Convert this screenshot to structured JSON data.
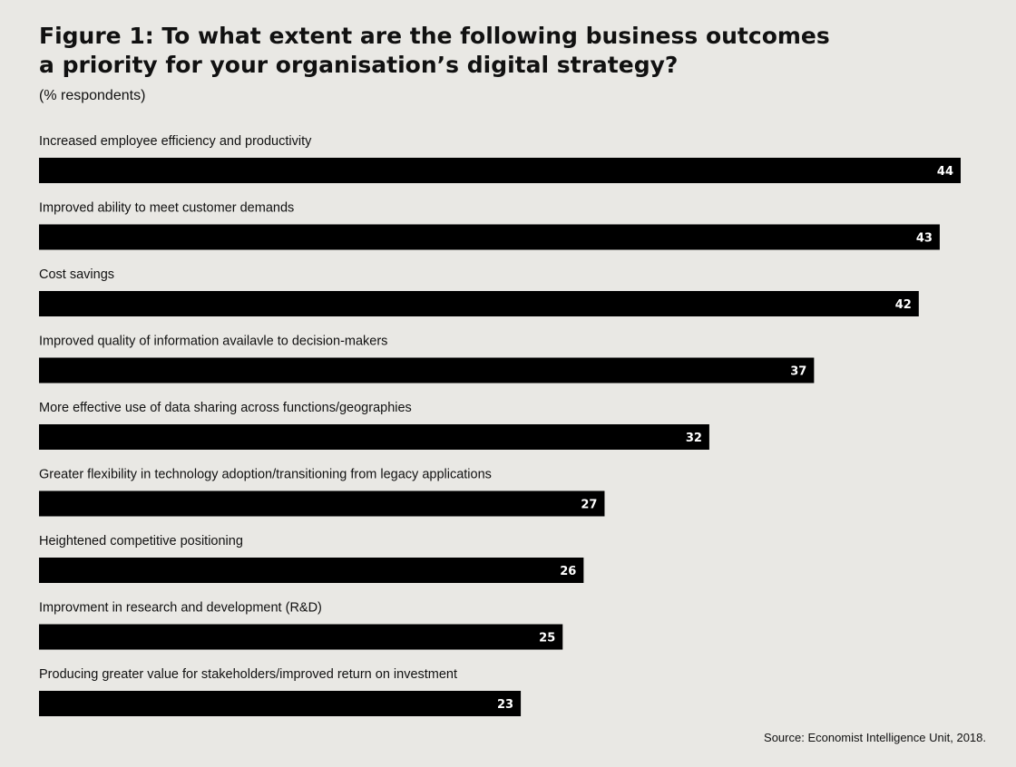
{
  "chart_data": {
    "type": "bar",
    "orientation": "horizontal",
    "title_line1": "Figure 1: To what extent are the following business outcomes",
    "title_line2": "a priority for your organisation’s digital strategy?",
    "subtitle": "(% respondents)",
    "source": "Source: Economist Intelligence Unit, 2018.",
    "categories": [
      "Increased employee efficiency and productivity",
      "Improved ability to meet customer demands",
      "Cost savings",
      "Improved quality of information availavle to decision-makers",
      "More effective use of data sharing across functions/geographies",
      "Greater flexibility in technology adoption/transitioning from legacy applications",
      "Heightened competitive positioning",
      "Improvment in research and development (R&D)",
      "Producing greater value for stakeholders/improved return on investment"
    ],
    "values": [
      44,
      43,
      42,
      37,
      32,
      27,
      26,
      25,
      23
    ],
    "xlim": [
      0,
      44
    ],
    "grid": false,
    "legend": "none",
    "colors": {
      "background": "#e9e8e4",
      "bar": "#000000",
      "value_label": "#ffffff",
      "text": "#111111"
    }
  }
}
